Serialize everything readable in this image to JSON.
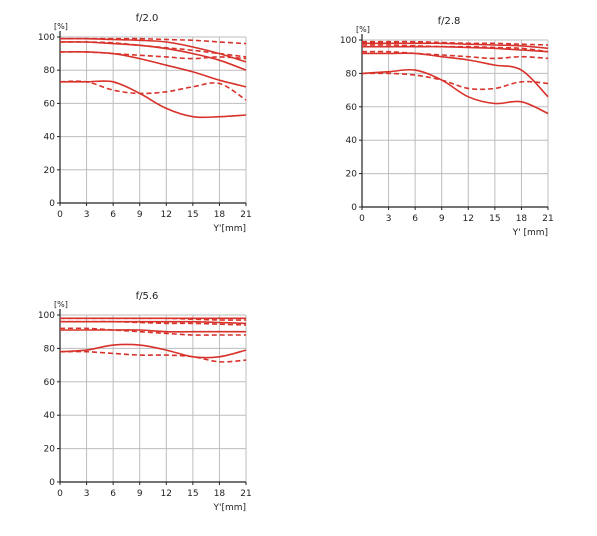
{
  "colors": {
    "curve": "#d8322b",
    "grid": "#bdbdbd",
    "axis": "#222222"
  },
  "chart_data": [
    {
      "type": "line",
      "title": "f/2.0",
      "ylabel": "[%]",
      "xlabel": "Y'[mm]",
      "xlim": [
        0,
        21
      ],
      "ylim": [
        0,
        100
      ],
      "xticks": [
        "0",
        "3",
        "6",
        "9",
        "12",
        "15",
        "18",
        "21"
      ],
      "yticks": [
        "0",
        "20",
        "40",
        "60",
        "80",
        "100"
      ],
      "series": [
        {
          "style": "solid",
          "x": [
            0,
            3,
            6,
            9,
            12,
            15,
            18,
            21
          ],
          "y": [
            99,
            99,
            98.5,
            98,
            97,
            94,
            90,
            85
          ]
        },
        {
          "style": "dashed",
          "x": [
            0,
            3,
            6,
            9,
            12,
            15,
            18,
            21
          ],
          "y": [
            99,
            99,
            99,
            99,
            98.5,
            98,
            97,
            96
          ]
        },
        {
          "style": "solid",
          "x": [
            0,
            3,
            6,
            9,
            12,
            15,
            18,
            21
          ],
          "y": [
            97,
            97,
            96,
            95,
            93,
            90,
            86,
            80
          ]
        },
        {
          "style": "dashed",
          "x": [
            0,
            3,
            6,
            9,
            12,
            15,
            18,
            21
          ],
          "y": [
            97,
            97,
            96.5,
            95,
            93.5,
            92,
            90,
            88
          ]
        },
        {
          "style": "solid",
          "x": [
            0,
            3,
            6,
            9,
            12,
            15,
            18,
            21
          ],
          "y": [
            91,
            91,
            90,
            87,
            83,
            79,
            74,
            70
          ]
        },
        {
          "style": "dashed",
          "x": [
            0,
            3,
            6,
            9,
            12,
            15,
            18,
            21
          ],
          "y": [
            91,
            91,
            90,
            89,
            88,
            87,
            88,
            87
          ]
        },
        {
          "style": "solid",
          "x": [
            0,
            3,
            6,
            9,
            12,
            15,
            18,
            21
          ],
          "y": [
            73,
            73,
            73,
            66,
            57,
            52,
            52,
            53
          ]
        },
        {
          "style": "dashed",
          "x": [
            0,
            3,
            6,
            9,
            12,
            15,
            18,
            21
          ],
          "y": [
            73,
            73,
            68,
            66,
            67,
            70,
            72,
            62
          ]
        }
      ]
    },
    {
      "type": "line",
      "title": "f/2.8",
      "ylabel": "[%]",
      "xlabel": "Y' [mm]",
      "xlim": [
        0,
        21
      ],
      "ylim": [
        0,
        100
      ],
      "xticks": [
        "0",
        "3",
        "6",
        "9",
        "12",
        "15",
        "18",
        "21"
      ],
      "yticks": [
        "0",
        "20",
        "40",
        "60",
        "80",
        "100"
      ],
      "series": [
        {
          "style": "solid",
          "x": [
            0,
            3,
            6,
            9,
            12,
            15,
            18,
            21
          ],
          "y": [
            98,
            98,
            98,
            98,
            97.5,
            97,
            96.5,
            95
          ]
        },
        {
          "style": "dashed",
          "x": [
            0,
            3,
            6,
            9,
            12,
            15,
            18,
            21
          ],
          "y": [
            99,
            99,
            99,
            98.5,
            98,
            98,
            97.5,
            97
          ]
        },
        {
          "style": "solid",
          "x": [
            0,
            3,
            6,
            9,
            12,
            15,
            18,
            21
          ],
          "y": [
            96,
            96,
            96,
            96,
            95.5,
            95,
            94,
            93
          ]
        },
        {
          "style": "dashed",
          "x": [
            0,
            3,
            6,
            9,
            12,
            15,
            18,
            21
          ],
          "y": [
            97,
            97,
            96.5,
            96,
            96,
            95.5,
            95,
            93
          ]
        },
        {
          "style": "solid",
          "x": [
            0,
            3,
            6,
            9,
            12,
            15,
            18,
            21
          ],
          "y": [
            92,
            92,
            92,
            90,
            88,
            85,
            82,
            66
          ]
        },
        {
          "style": "dashed",
          "x": [
            0,
            3,
            6,
            9,
            12,
            15,
            18,
            21
          ],
          "y": [
            93,
            93,
            92,
            91,
            90,
            89,
            90,
            89
          ]
        },
        {
          "style": "solid",
          "x": [
            0,
            3,
            6,
            9,
            12,
            15,
            18,
            21
          ],
          "y": [
            80,
            81,
            82,
            76,
            66,
            62,
            63,
            56
          ]
        },
        {
          "style": "dashed",
          "x": [
            0,
            3,
            6,
            9,
            12,
            15,
            18,
            21
          ],
          "y": [
            80,
            80,
            79,
            76,
            71,
            71,
            75,
            74
          ]
        }
      ]
    },
    {
      "type": "line",
      "title": "f/5.6",
      "ylabel": "[%]",
      "xlabel": "Y'[mm]",
      "xlim": [
        0,
        21
      ],
      "ylim": [
        0,
        100
      ],
      "xticks": [
        "0",
        "3",
        "6",
        "9",
        "12",
        "15",
        "18",
        "21"
      ],
      "yticks": [
        "0",
        "20",
        "40",
        "60",
        "80",
        "100"
      ],
      "series": [
        {
          "style": "solid",
          "x": [
            0,
            3,
            6,
            9,
            12,
            15,
            18,
            21
          ],
          "y": [
            98,
            98,
            98,
            98,
            98,
            98,
            98,
            98
          ]
        },
        {
          "style": "dashed",
          "x": [
            0,
            3,
            6,
            9,
            12,
            15,
            18,
            21
          ],
          "y": [
            98,
            98,
            98,
            98,
            98,
            97.5,
            97,
            97
          ]
        },
        {
          "style": "solid",
          "x": [
            0,
            3,
            6,
            9,
            12,
            15,
            18,
            21
          ],
          "y": [
            96,
            96,
            96,
            96,
            96,
            96,
            95.5,
            95
          ]
        },
        {
          "style": "dashed",
          "x": [
            0,
            3,
            6,
            9,
            12,
            15,
            18,
            21
          ],
          "y": [
            96,
            96,
            96,
            95.5,
            95,
            95,
            94.5,
            94
          ]
        },
        {
          "style": "solid",
          "x": [
            0,
            3,
            6,
            9,
            12,
            15,
            18,
            21
          ],
          "y": [
            91,
            91,
            91,
            91,
            90,
            90,
            90,
            90
          ]
        },
        {
          "style": "dashed",
          "x": [
            0,
            3,
            6,
            9,
            12,
            15,
            18,
            21
          ],
          "y": [
            92,
            92,
            91,
            90,
            89,
            88,
            88,
            88
          ]
        },
        {
          "style": "solid",
          "x": [
            0,
            3,
            6,
            9,
            12,
            15,
            18,
            21
          ],
          "y": [
            78,
            79,
            82,
            82,
            79,
            75,
            75,
            79
          ]
        },
        {
          "style": "dashed",
          "x": [
            0,
            3,
            6,
            9,
            12,
            15,
            18,
            21
          ],
          "y": [
            78,
            78,
            77,
            76,
            76,
            75,
            72,
            73
          ]
        }
      ]
    }
  ]
}
